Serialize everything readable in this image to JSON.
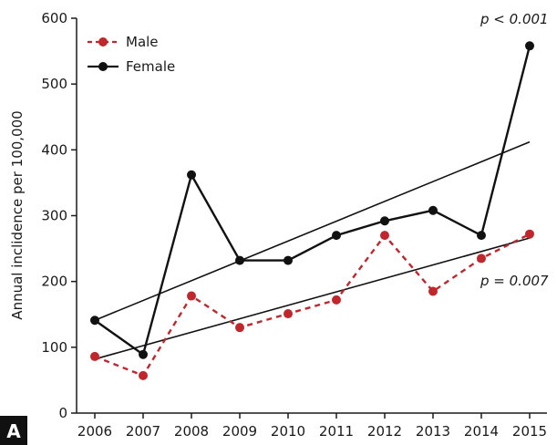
{
  "chart_data": {
    "type": "line",
    "title": "",
    "xlabel": "",
    "ylabel": "Annual inclidence per 100,000",
    "x": [
      "2006",
      "2007",
      "2008",
      "2009",
      "2010",
      "2011",
      "2012",
      "2013",
      "2014",
      "2015"
    ],
    "ylim": [
      0,
      600
    ],
    "yticks": [
      "0",
      "100",
      "200",
      "300",
      "400",
      "500",
      "600"
    ],
    "grid": false,
    "legend_position": "top-left",
    "series": [
      {
        "name": "Male",
        "color": "#c0272d",
        "style": "dashed",
        "marker": "circle",
        "values": [
          86,
          57,
          178,
          130,
          151,
          172,
          270,
          185,
          235,
          272
        ],
        "trend": [
          82,
          266
        ],
        "p_label": "p = 0.007"
      },
      {
        "name": "Female",
        "color": "#111111",
        "style": "solid",
        "marker": "circle",
        "values": [
          141,
          89,
          362,
          232,
          232,
          270,
          292,
          308,
          270,
          558
        ],
        "trend": [
          141,
          412
        ],
        "p_label": "p < 0.001"
      }
    ],
    "panel_label": "A"
  }
}
